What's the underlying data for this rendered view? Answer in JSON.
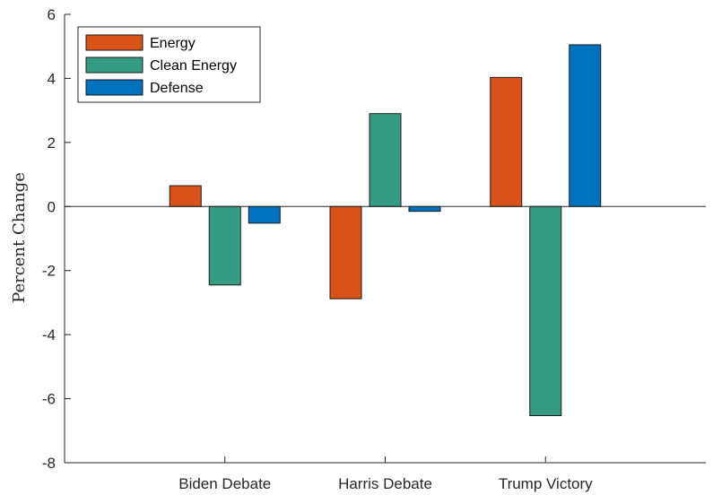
{
  "chart_data": {
    "type": "bar",
    "categories": [
      "Biden Debate",
      "Harris Debate",
      "Trump Victory"
    ],
    "series": [
      {
        "name": "Energy",
        "color": "#D95319",
        "values": [
          0.65,
          -2.88,
          4.03
        ]
      },
      {
        "name": "Clean Energy",
        "color": "#359B82",
        "values": [
          -2.45,
          2.9,
          -6.53
        ]
      },
      {
        "name": "Defense",
        "color": "#0072BD",
        "values": [
          -0.52,
          -0.15,
          5.05
        ]
      }
    ],
    "title": "",
    "xlabel": "",
    "ylabel": "Percent Change",
    "ylim": [
      -8,
      6
    ],
    "yticks": [
      6,
      4,
      2,
      0,
      -2,
      -4,
      -6,
      -8
    ],
    "ytick_labels": [
      "6",
      "4",
      "2",
      "0",
      "-2",
      "-4",
      "-6",
      "-8"
    ],
    "grid": false,
    "legend_position": "top-left"
  }
}
